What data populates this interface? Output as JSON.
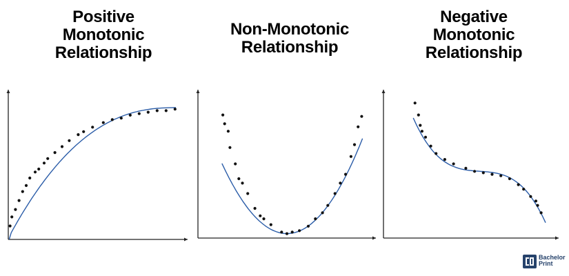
{
  "titles": {
    "positive": [
      "Positive",
      "Monotonic",
      "Relationship"
    ],
    "nonmonotonic": [
      "Non-Monotonic",
      "Relationship"
    ],
    "negative": [
      "Negative",
      "Monotonic",
      "Relationship"
    ]
  },
  "logo": {
    "line1": "Bachelor",
    "line2": "Print"
  },
  "colors": {
    "curve": "#2a5ca8",
    "point": "#111111",
    "axis": "#222222",
    "logo": "#26426b"
  },
  "chart_data": [
    {
      "type": "scatter",
      "title": "Positive Monotonic Relationship",
      "xlabel": "",
      "ylabel": "",
      "xlim": [
        0,
        1
      ],
      "ylim": [
        0,
        1
      ],
      "grid": false,
      "curve": "positive-concave",
      "points": [
        [
          0.01,
          0.09
        ],
        [
          0.02,
          0.15
        ],
        [
          0.04,
          0.2
        ],
        [
          0.06,
          0.26
        ],
        [
          0.08,
          0.32
        ],
        [
          0.1,
          0.36
        ],
        [
          0.12,
          0.41
        ],
        [
          0.15,
          0.45
        ],
        [
          0.17,
          0.47
        ],
        [
          0.2,
          0.51
        ],
        [
          0.22,
          0.54
        ],
        [
          0.26,
          0.58
        ],
        [
          0.3,
          0.62
        ],
        [
          0.34,
          0.66
        ],
        [
          0.39,
          0.7
        ],
        [
          0.42,
          0.72
        ],
        [
          0.47,
          0.75
        ],
        [
          0.53,
          0.78
        ],
        [
          0.58,
          0.8
        ],
        [
          0.63,
          0.81
        ],
        [
          0.68,
          0.83
        ],
        [
          0.73,
          0.84
        ],
        [
          0.78,
          0.85
        ],
        [
          0.83,
          0.86
        ],
        [
          0.88,
          0.86
        ],
        [
          0.93,
          0.87
        ]
      ]
    },
    {
      "type": "scatter",
      "title": "Non-Monotonic Relationship",
      "xlabel": "",
      "ylabel": "",
      "xlim": [
        0,
        1
      ],
      "ylim": [
        0,
        1
      ],
      "grid": false,
      "curve": "u-shape",
      "points": [
        [
          0.14,
          0.83
        ],
        [
          0.15,
          0.77
        ],
        [
          0.17,
          0.72
        ],
        [
          0.18,
          0.61
        ],
        [
          0.21,
          0.5
        ],
        [
          0.23,
          0.4
        ],
        [
          0.25,
          0.37
        ],
        [
          0.28,
          0.3
        ],
        [
          0.32,
          0.2
        ],
        [
          0.35,
          0.15
        ],
        [
          0.37,
          0.13
        ],
        [
          0.41,
          0.09
        ],
        [
          0.47,
          0.04
        ],
        [
          0.5,
          0.03
        ],
        [
          0.53,
          0.04
        ],
        [
          0.57,
          0.05
        ],
        [
          0.62,
          0.08
        ],
        [
          0.66,
          0.13
        ],
        [
          0.7,
          0.17
        ],
        [
          0.73,
          0.22
        ],
        [
          0.77,
          0.3
        ],
        [
          0.8,
          0.37
        ],
        [
          0.83,
          0.43
        ],
        [
          0.86,
          0.55
        ],
        [
          0.88,
          0.63
        ],
        [
          0.9,
          0.75
        ],
        [
          0.92,
          0.82
        ]
      ]
    },
    {
      "type": "scatter",
      "title": "Negative Monotonic Relationship",
      "xlabel": "",
      "ylabel": "",
      "xlim": [
        0,
        1
      ],
      "ylim": [
        0,
        1
      ],
      "grid": false,
      "curve": "negative-s",
      "points": [
        [
          0.18,
          0.91
        ],
        [
          0.2,
          0.83
        ],
        [
          0.21,
          0.76
        ],
        [
          0.22,
          0.72
        ],
        [
          0.24,
          0.68
        ],
        [
          0.27,
          0.62
        ],
        [
          0.3,
          0.57
        ],
        [
          0.35,
          0.53
        ],
        [
          0.4,
          0.5
        ],
        [
          0.47,
          0.47
        ],
        [
          0.52,
          0.45
        ],
        [
          0.57,
          0.44
        ],
        [
          0.62,
          0.43
        ],
        [
          0.67,
          0.42
        ],
        [
          0.72,
          0.4
        ],
        [
          0.77,
          0.36
        ],
        [
          0.8,
          0.33
        ],
        [
          0.84,
          0.28
        ],
        [
          0.87,
          0.25
        ],
        [
          0.88,
          0.22
        ],
        [
          0.9,
          0.17
        ]
      ]
    }
  ]
}
